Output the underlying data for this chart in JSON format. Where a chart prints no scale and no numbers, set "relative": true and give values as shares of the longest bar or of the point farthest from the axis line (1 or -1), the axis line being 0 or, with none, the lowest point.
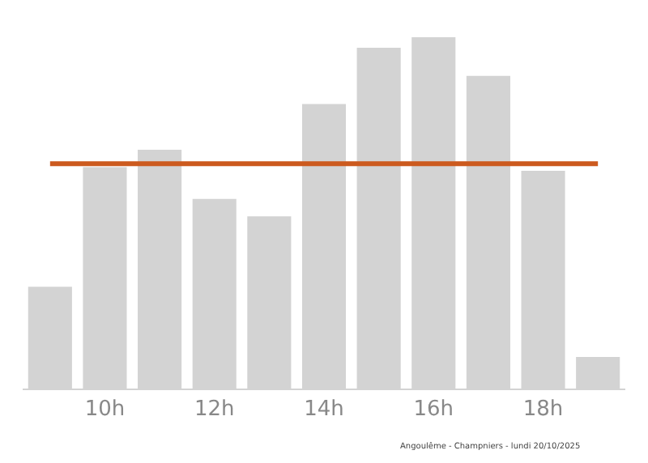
{
  "chart_data": {
    "type": "bar",
    "relative": true,
    "categories": [
      null,
      "10h",
      null,
      "12h",
      null,
      "14h",
      null,
      "16h",
      null,
      "18h",
      null
    ],
    "values": [
      0.29,
      0.63,
      0.68,
      0.54,
      0.49,
      0.81,
      0.97,
      1,
      0.89,
      0.62,
      0.09
    ],
    "color": "#d3d3d3",
    "ref_lines": [
      {
        "axis": "y",
        "value": 0.64,
        "color": "#cc5a1e"
      }
    ],
    "annotations": [
      "Angoulême - Champniers - lundi 20/10/2025"
    ],
    "grid": false,
    "legend": false
  }
}
